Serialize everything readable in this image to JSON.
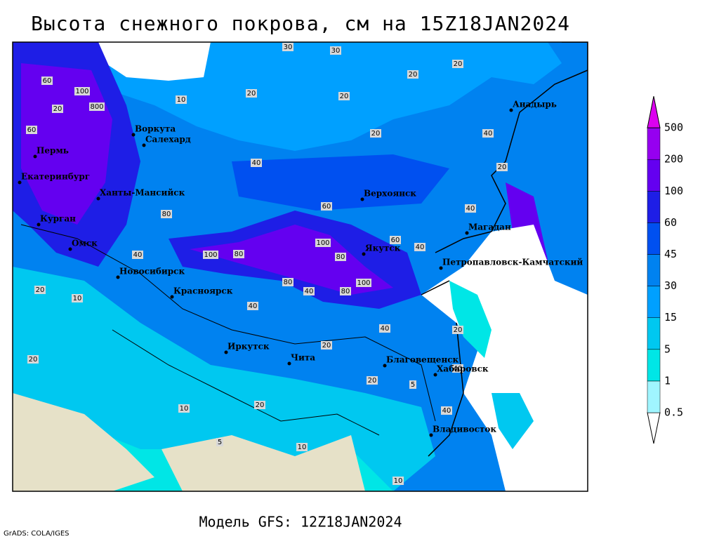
{
  "header": {
    "title": "Высота снежного покрова, см на 15Z18JAN2024"
  },
  "footer": {
    "model": "Модель GFS: 12Z18JAN2024",
    "credit": "GrADS: COLA/IGES"
  },
  "legend": {
    "levels": [
      0.5,
      1,
      5,
      15,
      30,
      45,
      60,
      100,
      200,
      500
    ],
    "colors": [
      "#ffffff",
      "#a0f5ff",
      "#00e6e6",
      "#00c8f0",
      "#00a0ff",
      "#0082f0",
      "#0050f0",
      "#1e1ee6",
      "#6400f0",
      "#9600f0",
      "#dc00f0"
    ]
  },
  "map": {
    "cities": [
      "Анадырь",
      "Воркута",
      "Салехард",
      "Пермь",
      "Екатеринбург",
      "Ханты-Мансийск",
      "Курган",
      "Омск",
      "Новосибирск",
      "Красноярск",
      "Иркутск",
      "Чита",
      "Благовещенск",
      "Хабаровск",
      "Владивосток",
      "Верхоянск",
      "Якутск",
      "Магадан",
      "Петропавловск-Камчатский"
    ],
    "contour_labels": [
      30,
      30,
      20,
      20,
      20,
      20,
      10,
      60,
      100,
      800,
      20,
      60,
      40,
      20,
      40,
      20,
      60,
      40,
      80,
      100,
      80,
      60,
      40,
      80,
      100,
      40,
      100,
      80,
      80,
      40,
      40,
      40,
      20,
      20,
      20,
      20,
      10,
      20,
      10,
      20,
      10,
      10,
      5,
      5,
      40,
      40
    ]
  }
}
